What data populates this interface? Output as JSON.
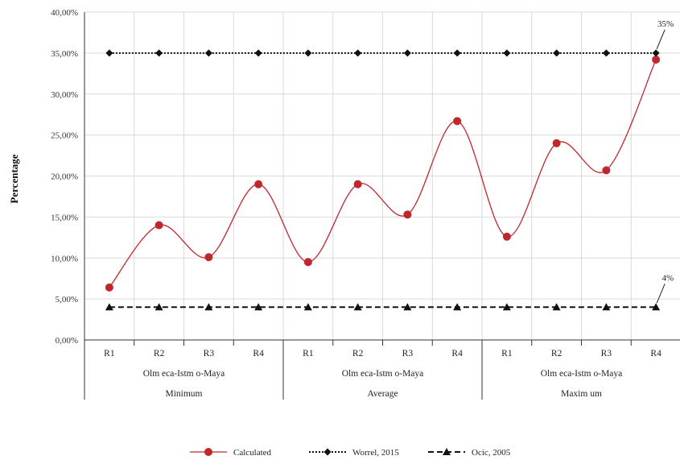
{
  "chart_data": {
    "type": "line",
    "ylabel": "Percentage",
    "ylim": [
      0,
      40
    ],
    "yticks": [
      "0,00%",
      "5,00%",
      "10,00%",
      "15,00%",
      "20,00%",
      "25,00%",
      "30,00%",
      "35,00%",
      "40,00%"
    ],
    "categories": [
      "R1",
      "R2",
      "R3",
      "R4",
      "R1",
      "R2",
      "R3",
      "R4",
      "R1",
      "R2",
      "R3",
      "R4"
    ],
    "groups": [
      {
        "region": "Olm eca-Istm o-Maya",
        "scenario": "Minimum"
      },
      {
        "region": "Olm eca-Istm o-Maya",
        "scenario": "Average"
      },
      {
        "region": "Olm eca-Istm o-Maya",
        "scenario": "Maxim um"
      }
    ],
    "series": [
      {
        "name": "Calculated",
        "color": "#c0272d",
        "style": "smooth-line-circle",
        "values": [
          6.4,
          14.0,
          10.1,
          19.0,
          9.5,
          19.0,
          15.3,
          26.7,
          12.6,
          24.0,
          20.7,
          34.2
        ]
      },
      {
        "name": "Worrel, 2015",
        "color": "#111111",
        "style": "dotted-diamond",
        "values": [
          35,
          35,
          35,
          35,
          35,
          35,
          35,
          35,
          35,
          35,
          35,
          35
        ]
      },
      {
        "name": "Ocic, 2005",
        "color": "#111111",
        "style": "dashed-triangle",
        "values": [
          4,
          4,
          4,
          4,
          4,
          4,
          4,
          4,
          4,
          4,
          4,
          4
        ]
      }
    ],
    "annotations": [
      {
        "text": "35%",
        "series": "Worrel, 2015",
        "index": 11
      },
      {
        "text": "4%",
        "series": "Ocic, 2005",
        "index": 11
      }
    ],
    "grid": true,
    "legend": "bottom"
  }
}
